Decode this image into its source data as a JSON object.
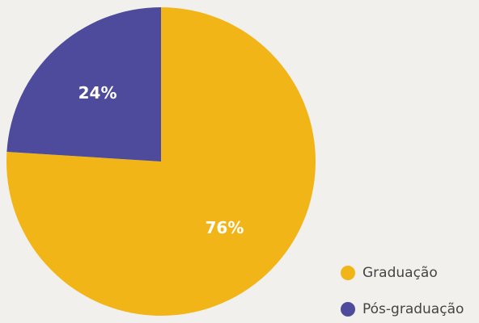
{
  "chart_data": {
    "type": "pie",
    "categories": [
      "Graduação",
      "Pós-graduação"
    ],
    "values": [
      76,
      24
    ],
    "value_labels": [
      "76%",
      "24%"
    ],
    "colors": [
      "#f2b517",
      "#4e4a9c"
    ]
  }
}
